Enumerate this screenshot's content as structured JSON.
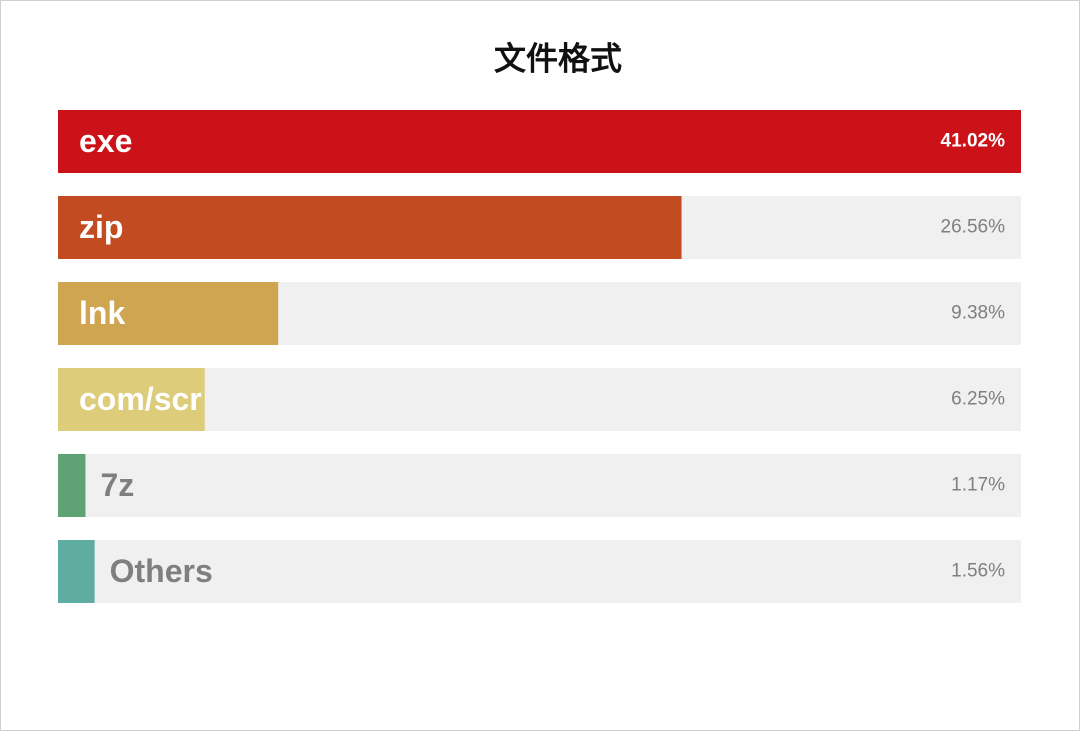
{
  "chart_data": {
    "type": "barh",
    "title": "文件格式",
    "categories": [
      "exe",
      "zip",
      "lnk",
      "com/scr",
      "7z",
      "Others"
    ],
    "values": [
      41.02,
      26.56,
      9.38,
      6.25,
      1.17,
      1.56
    ],
    "value_labels": [
      "41.02%",
      "26.56%",
      "9.38%",
      "6.25%",
      "1.17%",
      "1.56%"
    ],
    "colors": [
      "#cc1219",
      "#c34b22",
      "#cfa552",
      "#ddcc7a",
      "#5fa273",
      "#5fada0"
    ],
    "xlim": [
      0,
      41.02
    ]
  }
}
